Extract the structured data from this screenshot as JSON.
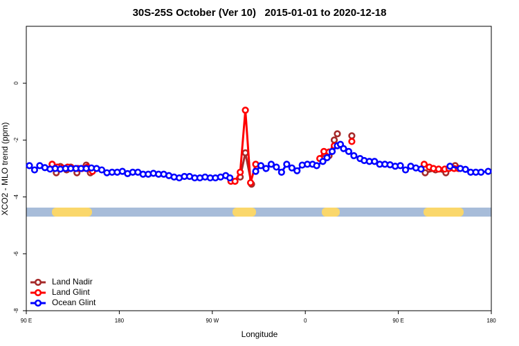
{
  "chart_data": {
    "type": "line",
    "title": "30S-25S October (Ver 10)   2015-01-01 to 2020-12-18",
    "x_label": "Longitude",
    "y_label": "XCO2 - MLO trend (ppm)",
    "xlim": [
      90,
      540
    ],
    "ylim": [
      -8,
      2
    ],
    "xticks": [
      {
        "value": 90,
        "label": "90 E"
      },
      180,
      {
        "value": 270,
        "label": "90 W"
      },
      {
        "value": 360,
        "label": "0"
      },
      {
        "value": 450,
        "label": "90 E"
      },
      {
        "value": 540,
        "label": "180"
      }
    ],
    "yticks": [
      -8,
      -6,
      -4,
      -2,
      0
    ],
    "legend": "bottom-left",
    "series": [
      {
        "name": "Land Nadir",
        "color": "#a52a2a",
        "x": [
          115,
          119,
          123,
          129,
          133,
          139,
          148,
          152,
          null,
          297,
          302,
          308,
          null,
          378,
          383,
          388,
          391,
          null,
          405,
          null,
          476,
          486,
          496,
          505
        ],
        "values": [
          -2.85,
          -3.15,
          -2.93,
          -3.05,
          -2.95,
          -3.15,
          -2.88,
          -3.15,
          null,
          -3.3,
          -2.45,
          -3.55,
          null,
          -2.65,
          -2.55,
          -2.0,
          -1.78,
          null,
          -1.85,
          null,
          -3.15,
          -3.05,
          -3.15,
          -2.9
        ]
      },
      {
        "name": "Land Glint",
        "color": "#ff0000",
        "x": [
          115,
          120,
          125,
          130,
          134,
          140,
          144,
          149,
          154,
          null,
          288,
          292,
          297,
          302,
          307,
          312,
          null,
          374,
          378,
          383,
          388,
          null,
          405,
          null,
          475,
          480,
          484,
          489,
          495,
          499,
          504,
          508
        ],
        "values": [
          -2.85,
          -2.95,
          -2.98,
          -2.95,
          -2.98,
          -3.0,
          -3.0,
          -2.95,
          -3.1,
          null,
          -3.45,
          -3.45,
          -3.13,
          -0.95,
          -3.5,
          -2.85,
          null,
          -2.65,
          -2.4,
          -2.42,
          -2.2,
          null,
          -2.05,
          null,
          -2.85,
          -2.95,
          -3.0,
          -3.02,
          -3.02,
          -3.0,
          -3.0,
          -3.0
        ]
      },
      {
        "name": "Ocean Glint",
        "color": "#0000ff",
        "x": [
          93,
          98,
          103,
          108,
          113,
          118,
          123,
          128,
          133,
          138,
          143,
          148,
          153,
          158,
          163,
          168,
          173,
          178,
          183,
          188,
          193,
          198,
          203,
          208,
          213,
          218,
          223,
          228,
          233,
          238,
          243,
          248,
          253,
          258,
          263,
          268,
          273,
          278,
          283,
          287,
          null,
          312,
          317,
          322,
          327,
          332,
          337,
          342,
          347,
          352,
          357,
          362,
          367,
          371,
          377,
          381,
          386,
          391,
          394,
          397,
          402,
          407,
          413,
          417,
          422,
          427,
          432,
          437,
          442,
          447,
          452,
          457,
          462,
          467,
          472,
          null,
          500,
          510,
          515,
          520,
          525,
          530,
          537
        ],
        "values": [
          -2.9,
          -3.05,
          -2.9,
          -2.97,
          -3.02,
          -3.0,
          -3.02,
          -3.0,
          -3.0,
          -3.0,
          -3.0,
          -3.0,
          -2.98,
          -3.0,
          -3.05,
          -3.15,
          -3.13,
          -3.13,
          -3.1,
          -3.18,
          -3.13,
          -3.13,
          -3.2,
          -3.2,
          -3.17,
          -3.2,
          -3.2,
          -3.25,
          -3.3,
          -3.33,
          -3.28,
          -3.28,
          -3.33,
          -3.33,
          -3.3,
          -3.33,
          -3.33,
          -3.3,
          -3.25,
          -3.33,
          null,
          -3.1,
          -2.9,
          -3.0,
          -2.85,
          -2.95,
          -3.13,
          -2.85,
          -2.98,
          -3.08,
          -2.88,
          -2.85,
          -2.85,
          -2.9,
          -2.75,
          -2.62,
          -2.4,
          -2.2,
          -2.15,
          -2.3,
          -2.4,
          -2.55,
          -2.65,
          -2.72,
          -2.75,
          -2.75,
          -2.85,
          -2.85,
          -2.87,
          -2.92,
          -2.9,
          -3.05,
          -2.92,
          -2.98,
          -3.02,
          null,
          -2.92,
          -3.0,
          -3.03,
          -3.13,
          -3.13,
          -3.13,
          -3.1
        ]
      }
    ]
  }
}
